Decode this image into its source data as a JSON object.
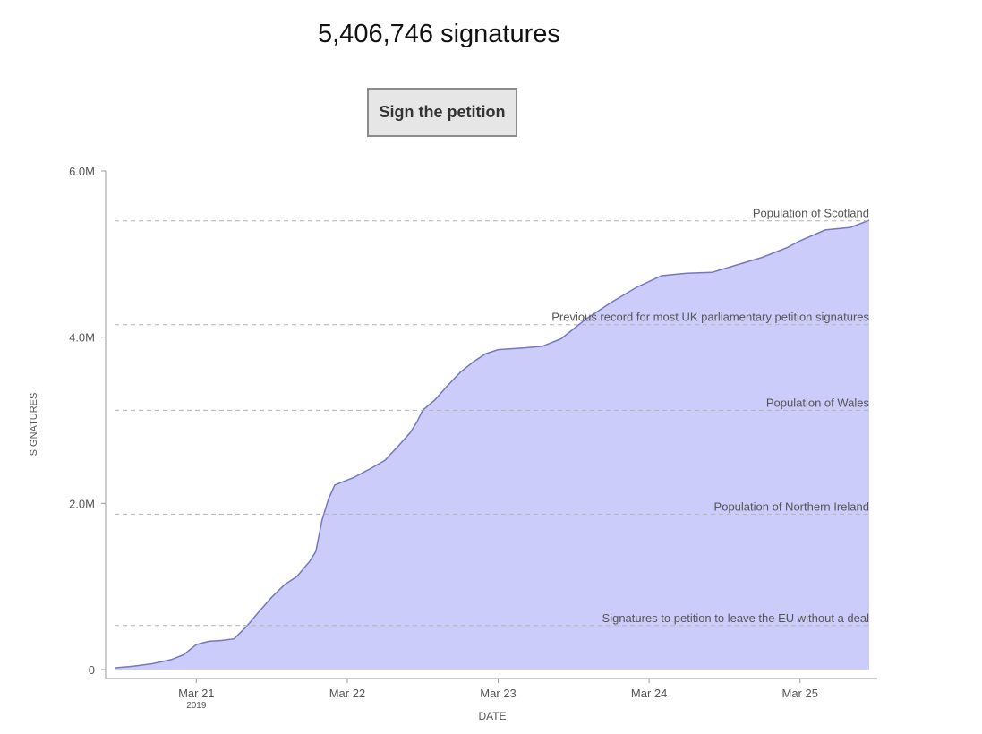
{
  "header": {
    "signature_count": "5,406,746 signatures",
    "sign_button_label": "Sign the petition"
  },
  "colors": {
    "area_fill": "#ccccfa",
    "line": "#7676c4",
    "reference_line": "#b3b3b3",
    "axis": "#999999"
  },
  "chart_data": {
    "type": "area",
    "title": "",
    "xlabel": "DATE",
    "ylabel": "SIGNATURES",
    "x_range": [
      "2019-03-20T11:00",
      "2019-03-25T11:00"
    ],
    "ylim": [
      0,
      6000000
    ],
    "y_ticks": [
      {
        "value": 0,
        "label": "0"
      },
      {
        "value": 2000000,
        "label": "2.0M"
      },
      {
        "value": 4000000,
        "label": "4.0M"
      },
      {
        "value": 6000000,
        "label": "6.0M"
      }
    ],
    "x_ticks": [
      {
        "value": "2019-03-21T00:00",
        "label": "Mar 21",
        "sublabel": "2019"
      },
      {
        "value": "2019-03-22T00:00",
        "label": "Mar 22",
        "sublabel": ""
      },
      {
        "value": "2019-03-23T00:00",
        "label": "Mar 23",
        "sublabel": ""
      },
      {
        "value": "2019-03-24T00:00",
        "label": "Mar 24",
        "sublabel": ""
      },
      {
        "value": "2019-03-25T00:00",
        "label": "Mar 25",
        "sublabel": ""
      }
    ],
    "grid": false,
    "series": [
      {
        "x": [
          "2019-03-20T11:00",
          "2019-03-20T14:00",
          "2019-03-20T17:00",
          "2019-03-20T20:00",
          "2019-03-20T22:00",
          "2019-03-21T00:00",
          "2019-03-21T02:00",
          "2019-03-21T04:00",
          "2019-03-21T06:00",
          "2019-03-21T08:00",
          "2019-03-21T10:00",
          "2019-03-21T12:00",
          "2019-03-21T14:00",
          "2019-03-21T16:00",
          "2019-03-21T18:00",
          "2019-03-21T19:00",
          "2019-03-21T20:00",
          "2019-03-21T21:00",
          "2019-03-21T22:00",
          "2019-03-21T23:00",
          "2019-03-22T00:00",
          "2019-03-22T01:00",
          "2019-03-22T02:00",
          "2019-03-22T04:00",
          "2019-03-22T06:00",
          "2019-03-22T08:00",
          "2019-03-22T10:00",
          "2019-03-22T11:00",
          "2019-03-22T12:00",
          "2019-03-22T14:00",
          "2019-03-22T16:00",
          "2019-03-22T18:00",
          "2019-03-22T20:00",
          "2019-03-22T22:00",
          "2019-03-23T00:00",
          "2019-03-23T04:00",
          "2019-03-23T07:00",
          "2019-03-23T10:00",
          "2019-03-23T14:00",
          "2019-03-23T18:00",
          "2019-03-23T22:00",
          "2019-03-24T02:00",
          "2019-03-24T06:00",
          "2019-03-24T10:00",
          "2019-03-24T14:00",
          "2019-03-24T18:00",
          "2019-03-24T22:00",
          "2019-03-25T00:00",
          "2019-03-25T04:00",
          "2019-03-25T08:00",
          "2019-03-25T11:00"
        ],
        "values": [
          20000,
          40000,
          70000,
          120000,
          180000,
          300000,
          340000,
          350000,
          370000,
          520000,
          700000,
          870000,
          1020000,
          1120000,
          1300000,
          1420000,
          1800000,
          2050000,
          2220000,
          2250000,
          2280000,
          2310000,
          2350000,
          2430000,
          2520000,
          2680000,
          2850000,
          2970000,
          3120000,
          3250000,
          3420000,
          3580000,
          3700000,
          3800000,
          3850000,
          3870000,
          3890000,
          3980000,
          4220000,
          4420000,
          4600000,
          4740000,
          4770000,
          4780000,
          4870000,
          4960000,
          5080000,
          5160000,
          5290000,
          5320000,
          5406746
        ]
      }
    ],
    "reference_lines": [
      {
        "value": 5400000,
        "label": "Population of Scotland"
      },
      {
        "value": 4150000,
        "label": "Previous record for most UK parliamentary petition signatures"
      },
      {
        "value": 3120000,
        "label": "Population of Wales"
      },
      {
        "value": 1870000,
        "label": "Population of Northern Ireland"
      },
      {
        "value": 530000,
        "label": "Signatures to petition to leave the EU without a deal"
      }
    ]
  }
}
